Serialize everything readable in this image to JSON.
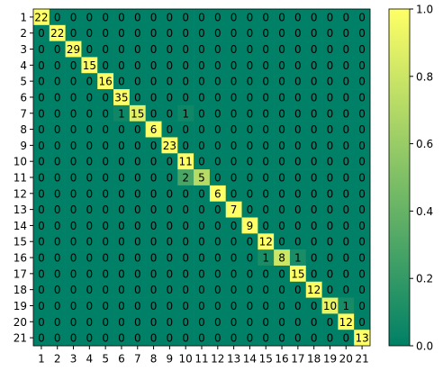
{
  "chart_data": {
    "type": "heatmap",
    "categories": [
      "1",
      "2",
      "3",
      "4",
      "5",
      "6",
      "7",
      "8",
      "9",
      "10",
      "11",
      "12",
      "13",
      "14",
      "15",
      "16",
      "17",
      "18",
      "19",
      "20",
      "21"
    ],
    "values": [
      [
        22,
        0,
        0,
        0,
        0,
        0,
        0,
        0,
        0,
        0,
        0,
        0,
        0,
        0,
        0,
        0,
        0,
        0,
        0,
        0,
        0
      ],
      [
        0,
        22,
        0,
        0,
        0,
        0,
        0,
        0,
        0,
        0,
        0,
        0,
        0,
        0,
        0,
        0,
        0,
        0,
        0,
        0,
        0
      ],
      [
        0,
        0,
        29,
        0,
        0,
        0,
        0,
        0,
        0,
        0,
        0,
        0,
        0,
        0,
        0,
        0,
        0,
        0,
        0,
        0,
        0
      ],
      [
        0,
        0,
        0,
        15,
        0,
        0,
        0,
        0,
        0,
        0,
        0,
        0,
        0,
        0,
        0,
        0,
        0,
        0,
        0,
        0,
        0
      ],
      [
        0,
        0,
        0,
        0,
        16,
        0,
        0,
        0,
        0,
        0,
        0,
        0,
        0,
        0,
        0,
        0,
        0,
        0,
        0,
        0,
        0
      ],
      [
        0,
        0,
        0,
        0,
        0,
        35,
        0,
        0,
        0,
        0,
        0,
        0,
        0,
        0,
        0,
        0,
        0,
        0,
        0,
        0,
        0
      ],
      [
        0,
        0,
        0,
        0,
        0,
        1,
        15,
        0,
        0,
        1,
        0,
        0,
        0,
        0,
        0,
        0,
        0,
        0,
        0,
        0,
        0
      ],
      [
        0,
        0,
        0,
        0,
        0,
        0,
        0,
        6,
        0,
        0,
        0,
        0,
        0,
        0,
        0,
        0,
        0,
        0,
        0,
        0,
        0
      ],
      [
        0,
        0,
        0,
        0,
        0,
        0,
        0,
        0,
        23,
        0,
        0,
        0,
        0,
        0,
        0,
        0,
        0,
        0,
        0,
        0,
        0
      ],
      [
        0,
        0,
        0,
        0,
        0,
        0,
        0,
        0,
        0,
        11,
        0,
        0,
        0,
        0,
        0,
        0,
        0,
        0,
        0,
        0,
        0
      ],
      [
        0,
        0,
        0,
        0,
        0,
        0,
        0,
        0,
        0,
        2,
        5,
        0,
        0,
        0,
        0,
        0,
        0,
        0,
        0,
        0,
        0
      ],
      [
        0,
        0,
        0,
        0,
        0,
        0,
        0,
        0,
        0,
        0,
        0,
        6,
        0,
        0,
        0,
        0,
        0,
        0,
        0,
        0,
        0
      ],
      [
        0,
        0,
        0,
        0,
        0,
        0,
        0,
        0,
        0,
        0,
        0,
        0,
        7,
        0,
        0,
        0,
        0,
        0,
        0,
        0,
        0
      ],
      [
        0,
        0,
        0,
        0,
        0,
        0,
        0,
        0,
        0,
        0,
        0,
        0,
        0,
        9,
        0,
        0,
        0,
        0,
        0,
        0,
        0
      ],
      [
        0,
        0,
        0,
        0,
        0,
        0,
        0,
        0,
        0,
        0,
        0,
        0,
        0,
        0,
        12,
        0,
        0,
        0,
        0,
        0,
        0
      ],
      [
        0,
        0,
        0,
        0,
        0,
        0,
        0,
        0,
        0,
        0,
        0,
        0,
        0,
        0,
        1,
        8,
        1,
        0,
        0,
        0,
        0
      ],
      [
        0,
        0,
        0,
        0,
        0,
        0,
        0,
        0,
        0,
        0,
        0,
        0,
        0,
        0,
        0,
        0,
        15,
        0,
        0,
        0,
        0
      ],
      [
        0,
        0,
        0,
        0,
        0,
        0,
        0,
        0,
        0,
        0,
        0,
        0,
        0,
        0,
        0,
        0,
        0,
        12,
        0,
        0,
        0
      ],
      [
        0,
        0,
        0,
        0,
        0,
        0,
        0,
        0,
        0,
        0,
        0,
        0,
        0,
        0,
        0,
        0,
        0,
        0,
        10,
        1,
        0
      ],
      [
        0,
        0,
        0,
        0,
        0,
        0,
        0,
        0,
        0,
        0,
        0,
        0,
        0,
        0,
        0,
        0,
        0,
        0,
        0,
        12,
        0
      ],
      [
        0,
        0,
        0,
        0,
        0,
        0,
        0,
        0,
        0,
        0,
        0,
        0,
        0,
        0,
        0,
        0,
        0,
        0,
        0,
        0,
        13
      ]
    ],
    "normalize": "row",
    "colormap": "summer",
    "clim": [
      0,
      1
    ],
    "cticks": [
      {
        "value": 0,
        "label": "0.0"
      },
      {
        "value": 0.2,
        "label": "0.2"
      },
      {
        "value": 0.4,
        "label": "0.4"
      },
      {
        "value": 0.6,
        "label": "0.6"
      },
      {
        "value": 0.8,
        "label": "0.8"
      },
      {
        "value": 1,
        "label": "1.0"
      }
    ]
  }
}
